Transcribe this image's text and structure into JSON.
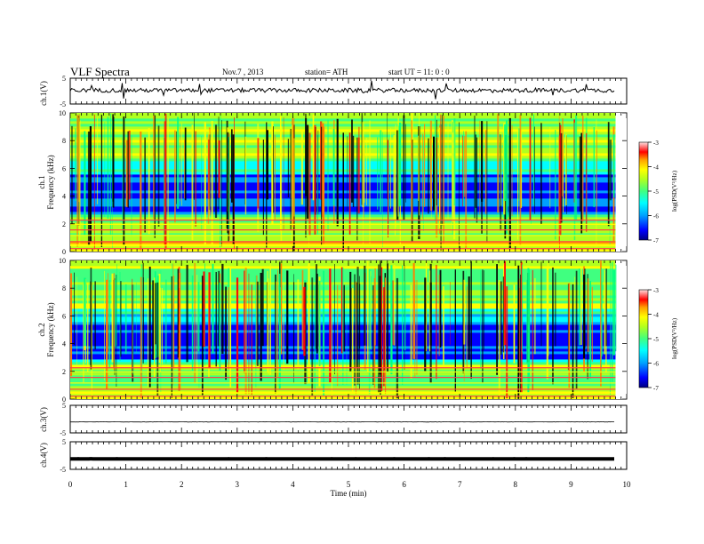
{
  "header": {
    "title": "VLF  Spectra",
    "date": "Nov.7  , 2013",
    "station": "station= ATH",
    "start": "start  UT  =    11: 0  : 0"
  },
  "chart_data": [
    {
      "type": "line",
      "ylabel": "ch.1(V)",
      "ylim": [
        -5,
        5
      ],
      "yticks": [
        "5",
        "-5"
      ],
      "description_level": 0.3
    },
    {
      "type": "heatmap",
      "ylabel_channel": "ch.1",
      "ylabel": "Frequency  (kHz)",
      "ylim": [
        0,
        10
      ],
      "yticks": [
        "10",
        "8",
        "6",
        "4",
        "2",
        "0"
      ],
      "colorbar_label": "log(PSD(V²/Hz)",
      "colorbar_ticks": [
        "-3",
        "-4",
        "-5",
        "-6",
        "-7"
      ],
      "colorbar_range": [
        -7,
        -3
      ]
    },
    {
      "type": "heatmap",
      "ylabel_channel": "ch.2",
      "ylabel": "Frequency  (kHz)",
      "ylim": [
        0,
        10
      ],
      "yticks": [
        "10",
        "8",
        "6",
        "4",
        "2",
        "0"
      ],
      "colorbar_label": "log(PSD(V²/Hz)",
      "colorbar_ticks": [
        "-3",
        "-4",
        "-5",
        "-6",
        "-7"
      ],
      "colorbar_range": [
        -7,
        -3
      ]
    },
    {
      "type": "line",
      "ylabel": "ch.3(V)",
      "ylim": [
        -5,
        5
      ],
      "yticks": [
        "5",
        "-5"
      ],
      "description_level": -1.0
    },
    {
      "type": "line",
      "ylabel": "ch.4(V)",
      "ylim": [
        -5,
        5
      ],
      "yticks": [
        "5",
        "-5"
      ],
      "description_level": -1.2
    }
  ],
  "xaxis": {
    "label": "Time  (min)",
    "xlim": [
      0,
      10
    ],
    "ticks": [
      "0",
      "1",
      "2",
      "3",
      "4",
      "5",
      "6",
      "7",
      "8",
      "9",
      "10"
    ],
    "data_end": 9.8
  },
  "colors": {
    "colormap": [
      "#000080",
      "#0000ff",
      "#00a0ff",
      "#00ffff",
      "#40ff80",
      "#b0ff20",
      "#ffff00",
      "#ffa000",
      "#ff0000",
      "#ffc0c0"
    ]
  }
}
